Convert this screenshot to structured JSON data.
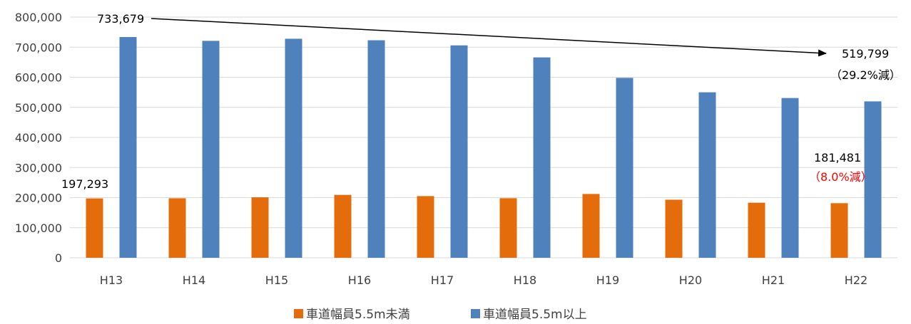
{
  "colors": {
    "series1": "#e46c0a",
    "series2": "#4f81bd",
    "grid": "#d9d9d9",
    "axis_text": "#404040",
    "annotation": "#000000",
    "annotation_highlight": "#ff0000"
  },
  "chart_data": {
    "type": "bar",
    "categories": [
      "H13",
      "H14",
      "H15",
      "H16",
      "H17",
      "H18",
      "H19",
      "H20",
      "H21",
      "H22"
    ],
    "series": [
      {
        "name": "車道幅員5.5m未満",
        "values": [
          197293,
          197800,
          201000,
          209000,
          205000,
          198000,
          212000,
          193000,
          183000,
          181481
        ]
      },
      {
        "name": "車道幅員5.5m以上",
        "values": [
          733679,
          721000,
          728000,
          723000,
          706000,
          666000,
          598000,
          550000,
          531000,
          519799
        ]
      }
    ],
    "ylim": [
      0,
      800000
    ],
    "yticks": [
      0,
      100000,
      200000,
      300000,
      400000,
      500000,
      600000,
      700000,
      800000
    ],
    "ytick_labels": [
      "0",
      "100,000",
      "200,000",
      "300,000",
      "400,000",
      "500,000",
      "600,000",
      "700,000",
      "800,000"
    ],
    "grid": true,
    "legend_position": "bottom",
    "annotations": {
      "s2_start": "733,679",
      "s2_end": "519,799",
      "s2_change": "（29.2%減）",
      "s1_start": "197,293",
      "s1_end": "181,481",
      "s1_change": "（8.0%減）"
    }
  }
}
